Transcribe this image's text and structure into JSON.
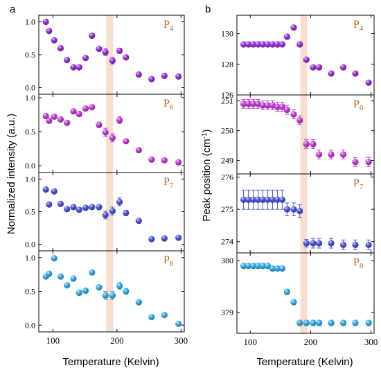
{
  "panels": [
    {
      "id": "a",
      "letter": "a",
      "xlabel": "Temperature (Kelvin)",
      "ylabel": "Normalized intensity (a.u.)"
    },
    {
      "id": "b",
      "letter": "b",
      "xlabel": "Temperature (Kelvin)",
      "ylabel_main": "Peak position (cm",
      "ylabel_sup": "-1",
      "ylabel_end": ")"
    }
  ],
  "colors": {
    "P4": "#9b30d8",
    "P6": "#c43ad6",
    "P7": "#4b55d8",
    "P8": "#33aee6",
    "band": "#f6d2c0",
    "label": "#c0661c"
  },
  "chart_data": [
    {
      "type": "scatter",
      "panel": "a",
      "xlim": [
        78,
        305
      ],
      "xticks": [
        100,
        200,
        300
      ],
      "highlight_band": [
        183,
        194
      ],
      "subplots": [
        {
          "name_base": "P",
          "name_sub": "4",
          "color_key": "P4",
          "ylim": [
            -0.1,
            1.1
          ],
          "yticks": [
            "0.0",
            "0.5",
            "1.0"
          ],
          "ytick_values": [
            0,
            0.5,
            1
          ],
          "x": [
            89,
            94,
            102,
            112,
            122,
            132,
            141,
            151,
            161,
            172,
            182,
            193,
            204,
            214,
            234,
            254,
            274,
            296
          ],
          "y": [
            1.0,
            0.86,
            0.72,
            0.6,
            0.42,
            0.31,
            0.31,
            0.45,
            0.79,
            0.59,
            0.54,
            0.41,
            0.56,
            0.46,
            0.2,
            0.13,
            0.18,
            0.17
          ],
          "err": [
            0.03,
            0.03,
            0.03,
            0.03,
            0.03,
            0.03,
            0.03,
            0.03,
            0.03,
            0.03,
            0.05,
            0.05,
            0.04,
            0.03,
            0.03,
            0.03,
            0.03,
            0.03
          ]
        },
        {
          "name_base": "P",
          "name_sub": "6",
          "color_key": "P6",
          "ylim": [
            -0.1,
            1.05
          ],
          "yticks": [
            "0.0",
            "0.5",
            "1.0"
          ],
          "ytick_values": [
            0,
            0.5,
            1
          ],
          "x": [
            89,
            94,
            102,
            112,
            122,
            132,
            141,
            151,
            161,
            172,
            182,
            193,
            204,
            214,
            234,
            254,
            274,
            296
          ],
          "y": [
            0.73,
            0.66,
            0.72,
            0.68,
            0.63,
            0.8,
            0.76,
            0.84,
            0.86,
            0.6,
            0.49,
            0.41,
            0.67,
            0.36,
            0.23,
            0.09,
            0.08,
            0.05
          ],
          "err": [
            0.03,
            0.03,
            0.03,
            0.03,
            0.03,
            0.03,
            0.03,
            0.03,
            0.03,
            0.04,
            0.06,
            0.06,
            0.05,
            0.03,
            0.03,
            0.03,
            0.03,
            0.03
          ]
        },
        {
          "name_base": "P",
          "name_sub": "7",
          "color_key": "P7",
          "ylim": [
            -0.1,
            1.1
          ],
          "yticks": [
            "0.0",
            "0.5",
            "1.0"
          ],
          "ytick_values": [
            0,
            0.5,
            1
          ],
          "x": [
            89,
            94,
            102,
            112,
            122,
            132,
            141,
            151,
            161,
            172,
            182,
            193,
            204,
            214,
            234,
            254,
            274,
            296
          ],
          "y": [
            0.84,
            0.61,
            0.81,
            0.62,
            0.54,
            0.57,
            0.53,
            0.56,
            0.57,
            0.57,
            0.45,
            0.51,
            0.65,
            0.48,
            0.36,
            0.08,
            0.09,
            0.1
          ],
          "err": [
            0.03,
            0.03,
            0.03,
            0.03,
            0.03,
            0.03,
            0.03,
            0.03,
            0.03,
            0.03,
            0.06,
            0.06,
            0.06,
            0.04,
            0.03,
            0.03,
            0.03,
            0.03
          ]
        },
        {
          "name_base": "P",
          "name_sub": "8",
          "color_key": "P8",
          "ylim": [
            -0.1,
            1.1
          ],
          "yticks": [
            "0.0",
            "0.5",
            "1.0"
          ],
          "ytick_values": [
            0,
            0.5,
            1
          ],
          "x": [
            89,
            94,
            102,
            112,
            122,
            132,
            141,
            151,
            161,
            172,
            182,
            193,
            204,
            214,
            234,
            254,
            274,
            296
          ],
          "y": [
            0.72,
            0.76,
            0.99,
            0.72,
            0.59,
            0.69,
            0.48,
            0.51,
            0.78,
            0.56,
            0.44,
            0.44,
            0.58,
            0.5,
            0.34,
            0.12,
            0.15,
            0.02
          ],
          "err": [
            0.03,
            0.03,
            0.03,
            0.03,
            0.03,
            0.03,
            0.03,
            0.03,
            0.03,
            0.03,
            0.06,
            0.06,
            0.05,
            0.04,
            0.03,
            0.03,
            0.03,
            0.03
          ]
        }
      ]
    },
    {
      "type": "scatter",
      "panel": "b",
      "xlim": [
        78,
        305
      ],
      "xticks": [
        100,
        200,
        300
      ],
      "highlight_band": [
        183,
        194
      ],
      "subplots": [
        {
          "name_base": "P",
          "name_sub": "4",
          "color_key": "P4",
          "ylim": [
            126,
            131.2
          ],
          "yticks": [
            "126",
            "128",
            "130"
          ],
          "ytick_values": [
            126,
            128,
            130
          ],
          "x": [
            89,
            97,
            105,
            113,
            121,
            129,
            137,
            145,
            153,
            161,
            172,
            182,
            193,
            204,
            214,
            234,
            254,
            274,
            296
          ],
          "y": [
            129.3,
            129.3,
            129.3,
            129.3,
            129.3,
            129.3,
            129.3,
            129.3,
            129.3,
            129.8,
            130.4,
            129.3,
            128.3,
            127.8,
            127.8,
            127.4,
            127.8,
            127.4,
            126.8
          ],
          "err": [
            0.05,
            0.05,
            0.05,
            0.05,
            0.05,
            0.05,
            0.05,
            0.05,
            0.05,
            0.05,
            0.05,
            0.05,
            0.05,
            0.05,
            0.05,
            0.05,
            0.05,
            0.05,
            0.05
          ]
        },
        {
          "name_base": "P",
          "name_sub": "6",
          "color_key": "P6",
          "ylim": [
            248.55,
            251.2
          ],
          "yticks": [
            "249",
            "250",
            "251"
          ],
          "ytick_values": [
            249,
            250,
            251
          ],
          "x": [
            89,
            97,
            105,
            113,
            121,
            129,
            137,
            145,
            153,
            161,
            172,
            182,
            193,
            204,
            214,
            234,
            254,
            274,
            296
          ],
          "y": [
            250.9,
            250.9,
            250.9,
            250.9,
            250.85,
            250.85,
            250.85,
            250.8,
            250.8,
            250.7,
            250.55,
            250.35,
            249.55,
            249.55,
            249.2,
            249.2,
            249.2,
            248.95,
            248.95
          ],
          "err": [
            0.15,
            0.15,
            0.15,
            0.15,
            0.15,
            0.15,
            0.15,
            0.15,
            0.15,
            0.15,
            0.15,
            0.15,
            0.15,
            0.15,
            0.15,
            0.15,
            0.15,
            0.15,
            0.15
          ]
        },
        {
          "name_base": "P",
          "name_sub": "7",
          "color_key": "P7",
          "ylim": [
            273.65,
            276.1
          ],
          "yticks": [
            "274",
            "275",
            "276"
          ],
          "ytick_values": [
            274,
            275,
            276
          ],
          "x": [
            89,
            97,
            105,
            113,
            121,
            129,
            137,
            145,
            153,
            161,
            172,
            182,
            193,
            204,
            214,
            234,
            254,
            274,
            296
          ],
          "y": [
            275.3,
            275.3,
            275.3,
            275.3,
            275.3,
            275.3,
            275.3,
            275.3,
            275.3,
            275.0,
            275.0,
            274.95,
            273.95,
            273.95,
            273.95,
            273.95,
            273.9,
            273.9,
            273.9
          ],
          "err": [
            0.3,
            0.3,
            0.3,
            0.3,
            0.3,
            0.3,
            0.3,
            0.3,
            0.3,
            0.2,
            0.2,
            0.2,
            0.12,
            0.15,
            0.15,
            0.15,
            0.15,
            0.15,
            0.15
          ]
        },
        {
          "name_base": "P",
          "name_sub": "8",
          "color_key": "P8",
          "ylim": [
            378.6,
            380.15
          ],
          "yticks": [
            "379",
            "380"
          ],
          "ytick_values": [
            379,
            380
          ],
          "x": [
            89,
            97,
            105,
            113,
            121,
            129,
            137,
            145,
            153,
            161,
            172,
            182,
            193,
            204,
            214,
            234,
            254,
            274,
            296
          ],
          "y": [
            379.9,
            379.9,
            379.9,
            379.9,
            379.9,
            379.9,
            379.85,
            379.85,
            379.85,
            379.4,
            379.2,
            378.8,
            378.8,
            378.8,
            378.8,
            378.8,
            378.8,
            378.8,
            378.8
          ],
          "err": [
            0.04,
            0.04,
            0.04,
            0.04,
            0.04,
            0.04,
            0.04,
            0.04,
            0.04,
            0.05,
            0.05,
            0.05,
            0.05,
            0.05,
            0.05,
            0.05,
            0.05,
            0.05,
            0.05
          ]
        }
      ]
    }
  ]
}
